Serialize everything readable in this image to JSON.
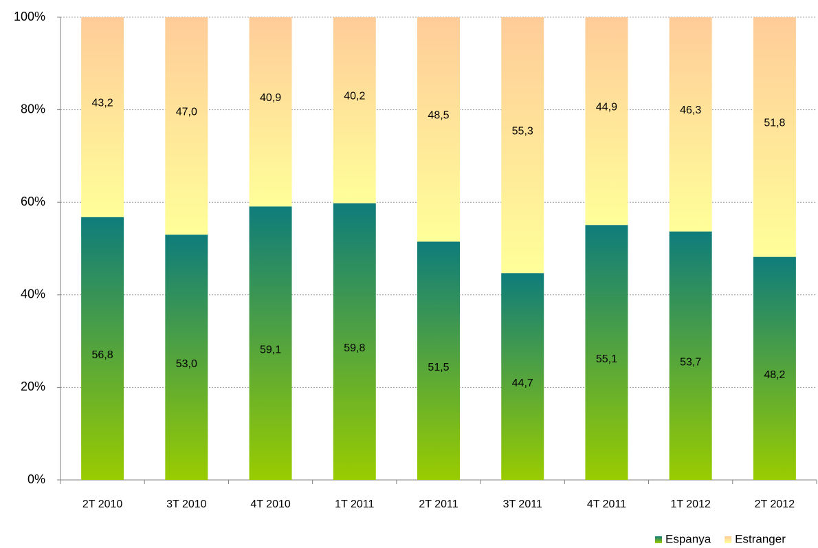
{
  "chart_data": {
    "type": "stacked_bar_100",
    "categories": [
      "2T 2010",
      "3T 2010",
      "4T 2010",
      "1T 2011",
      "2T 2011",
      "3T 2011",
      "4T 2011",
      "1T 2012",
      "2T 2012"
    ],
    "series": [
      {
        "name": "Espanya",
        "colors": [
          "#99cc00",
          "#0e7c7b"
        ],
        "values": [
          56.8,
          53.0,
          59.1,
          59.8,
          51.5,
          44.7,
          55.1,
          53.7,
          48.2
        ],
        "value_labels": [
          "56,8",
          "53,0",
          "59,1",
          "59,8",
          "51,5",
          "44,7",
          "55,1",
          "53,7",
          "48,2"
        ]
      },
      {
        "name": "Estranger",
        "colors": [
          "#ffff99",
          "#ffcc99"
        ],
        "values": [
          43.2,
          47.0,
          40.9,
          40.2,
          48.5,
          55.3,
          44.9,
          46.3,
          51.8
        ],
        "value_labels": [
          "43,2",
          "47,0",
          "40,9",
          "40,2",
          "48,5",
          "55,3",
          "44,9",
          "46,3",
          "51,8"
        ]
      }
    ],
    "ylim": [
      0,
      100
    ],
    "yticks": [
      {
        "value": 0,
        "label": "0%"
      },
      {
        "value": 20,
        "label": "20%"
      },
      {
        "value": 40,
        "label": "40%"
      },
      {
        "value": 60,
        "label": "60%"
      },
      {
        "value": 80,
        "label": "80%"
      },
      {
        "value": 100,
        "label": "100%"
      }
    ],
    "grid": true,
    "legend": "bottom-right"
  }
}
